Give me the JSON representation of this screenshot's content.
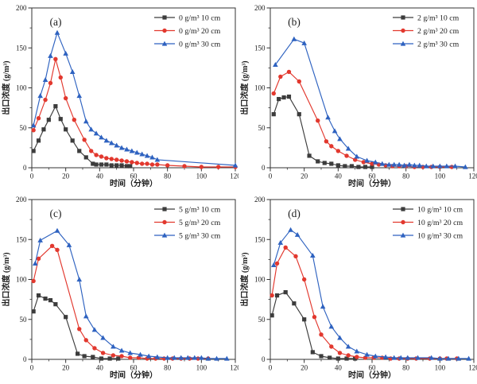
{
  "figure": {
    "background": "#ffffff",
    "axis_color": "#333333",
    "text_color": "#1c1c1c"
  },
  "chart_data": [
    {
      "type": "line",
      "panel_label": "(a)",
      "xlabel": "时间（分钟）",
      "ylabel": "出口浓度 (g/m³)",
      "xlim": [
        0,
        120
      ],
      "ylim": [
        0,
        200
      ],
      "xticks": [
        0,
        20,
        40,
        60,
        80,
        100,
        120
      ],
      "yticks": [
        0,
        50,
        100,
        150,
        200
      ],
      "x_minor_step": 10,
      "y_minor_step": 25,
      "grid": false,
      "legend_position": "top-right",
      "series": [
        {
          "name": "0 g/m³ 10 cm",
          "color": "#3c3c3c",
          "marker": "square",
          "x": [
            1,
            4,
            7,
            10,
            14,
            17,
            20,
            24,
            28,
            32,
            36,
            38,
            41,
            44,
            47,
            50,
            53,
            56,
            58
          ],
          "y": [
            21,
            34,
            48,
            60,
            77,
            61,
            48,
            34,
            21,
            13,
            5,
            4,
            4,
            4,
            3,
            3,
            3,
            2,
            2
          ]
        },
        {
          "name": "0 g/m³ 20 cm",
          "color": "#e2382e",
          "marker": "circle",
          "x": [
            1,
            4,
            8,
            11,
            14,
            17,
            20,
            25,
            31,
            35,
            38,
            41,
            44,
            47,
            50,
            53,
            56,
            59,
            62,
            65,
            68,
            71,
            74,
            80,
            90,
            100,
            110,
            120
          ],
          "y": [
            47,
            62,
            85,
            106,
            136,
            113,
            87,
            60,
            35,
            21,
            16,
            14,
            12,
            11,
            10,
            9,
            8,
            7,
            6,
            5,
            5,
            4,
            4,
            3,
            2,
            1,
            1,
            1
          ]
        },
        {
          "name": "0 g/m³ 30 cm",
          "color": "#2e62c0",
          "marker": "triangle",
          "x": [
            1,
            5,
            8,
            11,
            15,
            20,
            24,
            28,
            32,
            35,
            38,
            41,
            44,
            47,
            50,
            53,
            56,
            59,
            62,
            65,
            68,
            71,
            74,
            120
          ],
          "y": [
            53,
            90,
            110,
            140,
            169,
            143,
            120,
            90,
            58,
            48,
            43,
            38,
            34,
            31,
            28,
            25,
            23,
            21,
            19,
            17,
            15,
            13,
            10,
            3
          ]
        }
      ]
    },
    {
      "type": "line",
      "panel_label": "(b)",
      "xlabel": "时间（分钟）",
      "ylabel": "出口浓度 (g/m³)",
      "xlim": [
        0,
        120
      ],
      "ylim": [
        0,
        200
      ],
      "xticks": [
        0,
        20,
        40,
        60,
        80,
        100,
        120
      ],
      "yticks": [
        0,
        50,
        100,
        150,
        200
      ],
      "x_minor_step": 10,
      "y_minor_step": 25,
      "grid": false,
      "legend_position": "top-right",
      "series": [
        {
          "name": "2 g/m³ 10 cm",
          "color": "#3c3c3c",
          "marker": "square",
          "x": [
            2,
            5,
            8,
            11,
            17,
            23,
            28,
            32,
            36,
            40,
            44,
            48,
            52,
            56,
            60
          ],
          "y": [
            67,
            86,
            88,
            89,
            67,
            15,
            8,
            6,
            5,
            3,
            2,
            2,
            1,
            1,
            1
          ]
        },
        {
          "name": "2 g/m³ 20 cm",
          "color": "#e2382e",
          "marker": "circle",
          "x": [
            2,
            6,
            11,
            17,
            28,
            33,
            36,
            40,
            45,
            50,
            55,
            60,
            64,
            68,
            72,
            76,
            80,
            85,
            90,
            95,
            100,
            107
          ],
          "y": [
            93,
            114,
            120,
            108,
            59,
            33,
            27,
            21,
            15,
            10,
            7,
            5,
            4,
            3,
            2,
            2,
            2,
            1,
            1,
            1,
            1,
            1
          ]
        },
        {
          "name": "2 g/m³ 30 cm",
          "color": "#2e62c0",
          "marker": "triangle",
          "x": [
            3,
            14,
            20,
            34,
            38,
            41,
            46,
            51,
            57,
            62,
            66,
            70,
            73,
            76,
            79,
            82,
            85,
            88,
            92,
            96,
            100,
            104,
            109,
            115
          ],
          "y": [
            129,
            161,
            156,
            63,
            46,
            36,
            24,
            14,
            9,
            7,
            5,
            4,
            4,
            4,
            3,
            4,
            3,
            3,
            2,
            2,
            2,
            2,
            2,
            1
          ]
        }
      ]
    },
    {
      "type": "line",
      "panel_label": "(c)",
      "xlabel": "时间（分钟）",
      "ylabel": "出口浓度 (g/m³)",
      "xlim": [
        0,
        120
      ],
      "ylim": [
        0,
        200
      ],
      "xticks": [
        0,
        20,
        40,
        60,
        80,
        100,
        120
      ],
      "yticks": [
        0,
        50,
        100,
        150,
        200
      ],
      "x_minor_step": 10,
      "y_minor_step": 25,
      "grid": false,
      "legend_position": "top-right",
      "series": [
        {
          "name": "5 g/m³ 10 cm",
          "color": "#3c3c3c",
          "marker": "square",
          "x": [
            1,
            4,
            8,
            11,
            14,
            20,
            27,
            31,
            36,
            41,
            46,
            51
          ],
          "y": [
            60,
            80,
            76,
            74,
            69,
            53,
            7,
            4,
            3,
            1,
            1,
            1
          ]
        },
        {
          "name": "5 g/m³ 20 cm",
          "color": "#e2382e",
          "marker": "circle",
          "x": [
            1,
            4,
            12,
            15,
            28,
            32,
            37,
            42,
            48,
            53,
            58,
            63,
            68,
            73,
            78,
            83,
            88,
            93,
            98,
            104
          ],
          "y": [
            98,
            126,
            142,
            137,
            38,
            24,
            14,
            8,
            5,
            4,
            2,
            2,
            1,
            1,
            1,
            1,
            1,
            1,
            1,
            1
          ]
        },
        {
          "name": "5 g/m³ 30 cm",
          "color": "#2e62c0",
          "marker": "triangle",
          "x": [
            2,
            5,
            15,
            22,
            28,
            32,
            37,
            42,
            48,
            53,
            58,
            64,
            69,
            74,
            80,
            84,
            88,
            92,
            96,
            100,
            104,
            109,
            115
          ],
          "y": [
            120,
            149,
            161,
            143,
            100,
            54,
            37,
            27,
            16,
            11,
            8,
            6,
            4,
            3,
            2,
            2,
            2,
            2,
            2,
            2,
            1,
            1,
            1
          ]
        }
      ]
    },
    {
      "type": "line",
      "panel_label": "(d)",
      "xlabel": "时间（分钟）",
      "ylabel": "出口浓度 (g/m³)",
      "xlim": [
        0,
        120
      ],
      "ylim": [
        0,
        200
      ],
      "xticks": [
        0,
        20,
        40,
        60,
        80,
        100,
        120
      ],
      "yticks": [
        0,
        50,
        100,
        150,
        200
      ],
      "x_minor_step": 10,
      "y_minor_step": 25,
      "grid": false,
      "legend_position": "top-right",
      "series": [
        {
          "name": "10 g/m³ 10 cm",
          "color": "#3c3c3c",
          "marker": "square",
          "x": [
            1,
            4,
            9,
            14,
            20,
            25,
            30,
            35,
            40,
            45,
            50
          ],
          "y": [
            55,
            80,
            84,
            70,
            50,
            9,
            4,
            2,
            1,
            1,
            1
          ]
        },
        {
          "name": "10 g/m³ 20 cm",
          "color": "#e2382e",
          "marker": "circle",
          "x": [
            1,
            4,
            9,
            15,
            20,
            26,
            30,
            36,
            41,
            46,
            51,
            56,
            61,
            66,
            71,
            76,
            81,
            86,
            94,
            100,
            104,
            110
          ],
          "y": [
            80,
            120,
            140,
            129,
            100,
            53,
            31,
            16,
            8,
            5,
            3,
            2,
            2,
            2,
            1,
            1,
            1,
            1,
            1,
            1,
            1,
            1
          ]
        },
        {
          "name": "10 g/m³ 30 cm",
          "color": "#2e62c0",
          "marker": "triangle",
          "x": [
            2,
            6,
            12,
            16,
            25,
            31,
            36,
            41,
            46,
            51,
            57,
            62,
            68,
            73,
            77,
            81,
            87,
            95,
            100,
            105,
            111,
            117
          ],
          "y": [
            118,
            146,
            162,
            156,
            130,
            66,
            41,
            27,
            16,
            10,
            6,
            4,
            3,
            2,
            2,
            2,
            2,
            2,
            1,
            1,
            1,
            1
          ]
        }
      ]
    }
  ]
}
